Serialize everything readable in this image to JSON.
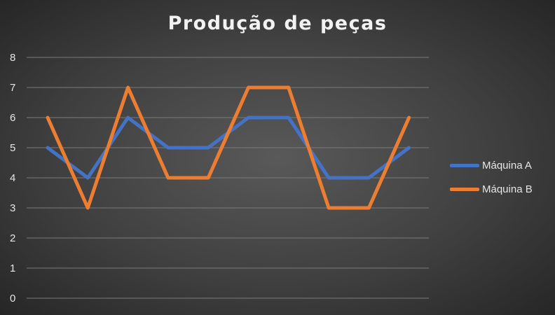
{
  "chart_data": {
    "type": "line",
    "title": "Produção de peças",
    "categories": [
      "",
      "",
      "",
      "",
      "",
      "",
      "",
      "",
      "",
      ""
    ],
    "ylim": [
      0,
      8
    ],
    "yticks": [
      0,
      1,
      2,
      3,
      4,
      5,
      6,
      7,
      8
    ],
    "grid": true,
    "legend_position": "right",
    "series": [
      {
        "name": "Máquina A",
        "color": "#4472C4",
        "values": [
          5,
          4,
          6,
          5,
          5,
          6,
          6,
          4,
          4,
          5
        ]
      },
      {
        "name": "Máquina B",
        "color": "#ED7D31",
        "values": [
          6,
          3,
          7,
          4,
          4,
          7,
          7,
          3,
          3,
          6
        ]
      }
    ]
  }
}
